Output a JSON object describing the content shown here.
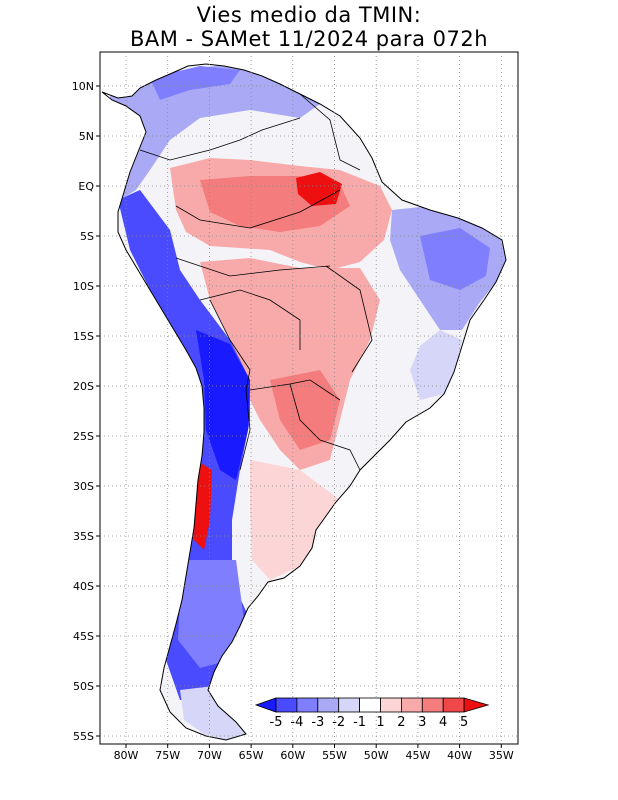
{
  "title": {
    "line1": "Vies medio da TMIN:",
    "line2": "BAM - SAMet 11/2024  para 072h"
  },
  "map": {
    "region": "South America",
    "variable": "TMIN bias",
    "lat_labels": [
      "10N",
      "5N",
      "EQ",
      "5S",
      "10S",
      "15S",
      "20S",
      "25S",
      "30S",
      "35S",
      "40S",
      "45S",
      "50S",
      "55S"
    ],
    "lon_labels": [
      "80W",
      "75W",
      "70W",
      "65W",
      "60W",
      "55W",
      "50W",
      "45W",
      "40W",
      "35W"
    ]
  },
  "colorbar": {
    "labels": [
      "-5",
      "-4",
      "-3",
      "-2",
      "-1",
      "1",
      "2",
      "3",
      "4",
      "5"
    ],
    "colors": [
      "#1a1aff",
      "#4a4aff",
      "#7e7eff",
      "#a9a9f5",
      "#d6d6f8",
      "#ffffff",
      "#fcd6d6",
      "#f8aaaa",
      "#f47c7c",
      "#f04848",
      "#ee1010"
    ]
  },
  "colors": {
    "background": "#ffffff",
    "land_neutral": "#f4f4f8",
    "grid": "#888888"
  }
}
